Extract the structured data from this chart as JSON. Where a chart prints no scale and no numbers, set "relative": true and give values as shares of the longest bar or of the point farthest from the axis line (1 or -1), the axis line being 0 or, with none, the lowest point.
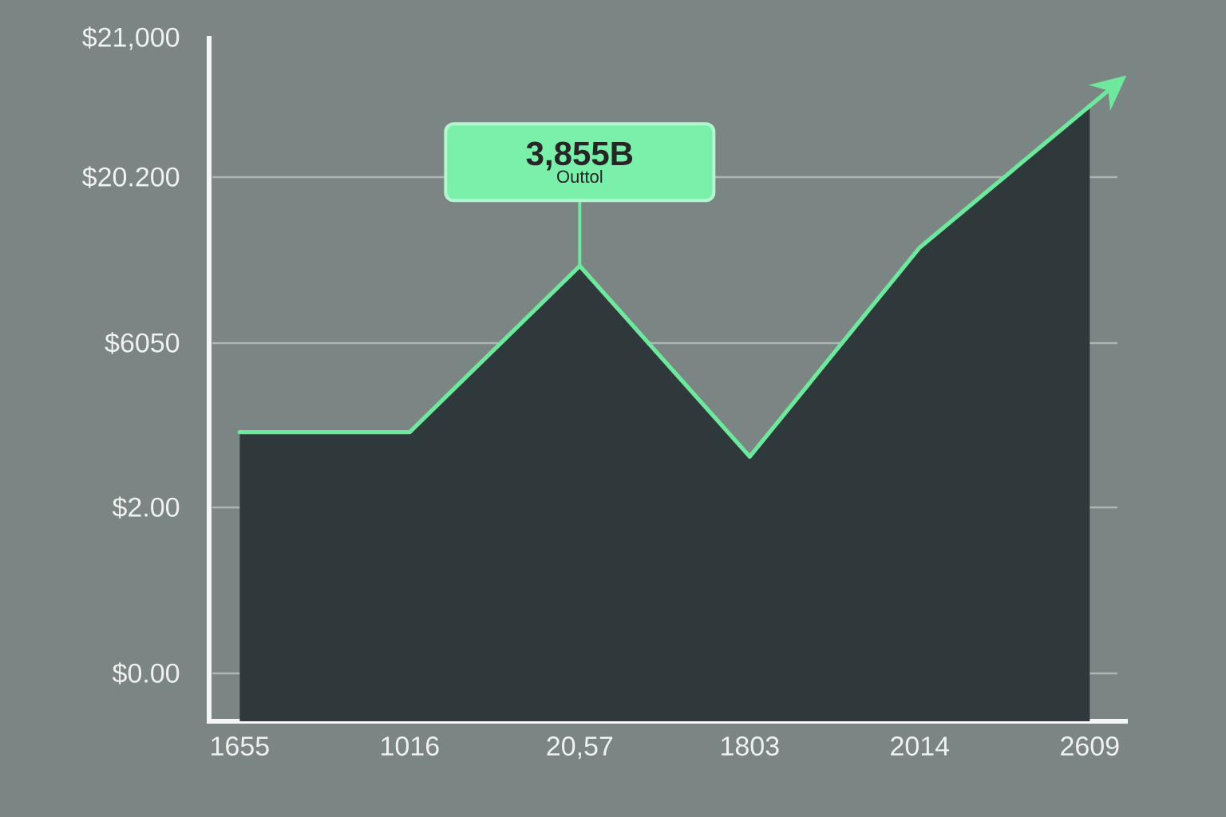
{
  "chart_data": {
    "type": "area",
    "relative": true,
    "categories": [
      "1655",
      "1016",
      "20,57",
      "1803",
      "2014",
      "2609"
    ],
    "values": [
      0.47,
      0.47,
      0.74,
      0.43,
      0.77,
      1
    ],
    "color": "#2f393c",
    "grid": "y",
    "annotations": [
      "$21,000",
      "$20.200",
      "$6050",
      "$2.00",
      "$0.00",
      {
        "text": "3,855B",
        "x": "20,57",
        "y": 0.74
      },
      {
        "text": "Outtol",
        "x": "20,57",
        "y": 0.74
      }
    ]
  }
}
